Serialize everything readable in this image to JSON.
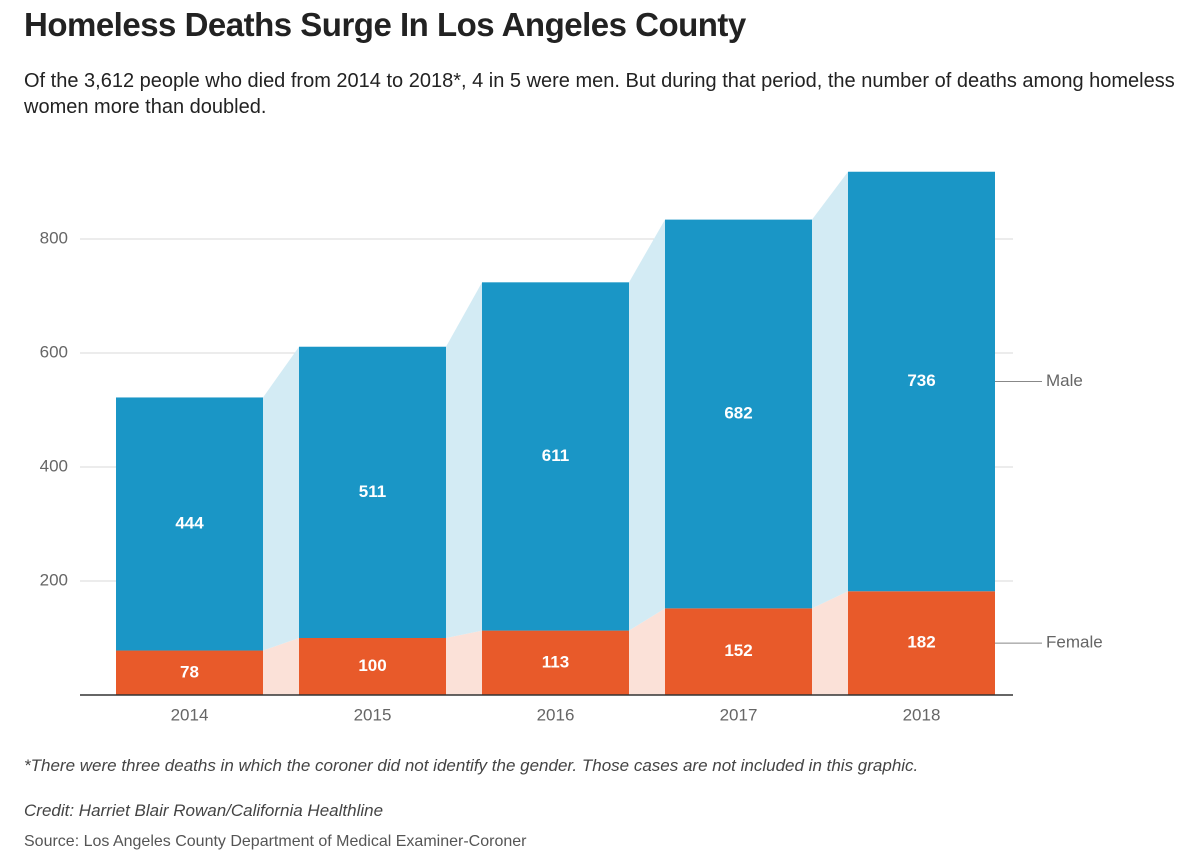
{
  "chart_data": {
    "type": "stacked_bar",
    "title": "Homeless Deaths Surge In Los Angeles County",
    "subtitle": "Of the 3,612 people who died from 2014 to 2018*, 4 in 5 were men. But during that period, the number of deaths among homeless women more than doubled.",
    "categories": [
      "2014",
      "2015",
      "2016",
      "2017",
      "2018"
    ],
    "series": [
      {
        "name": "Female",
        "color": "#e85a2a",
        "connector_color": "#fbe1d8",
        "values": [
          78,
          100,
          113,
          152,
          182
        ]
      },
      {
        "name": "Male",
        "color": "#1a96c6",
        "connector_color": "#d3ebf4",
        "values": [
          444,
          511,
          611,
          682,
          736
        ]
      }
    ],
    "ylim": [
      0,
      1000
    ],
    "yticks": [
      200,
      400,
      600,
      800
    ],
    "grid": true,
    "footnote": "*There were three deaths in which the coroner did not identify the gender. Those cases are not included in this graphic.",
    "credit": "Credit: Harriet Blair Rowan/California Healthline",
    "source": "Source: Los Angeles County Department of Medical Examiner-Coroner"
  }
}
